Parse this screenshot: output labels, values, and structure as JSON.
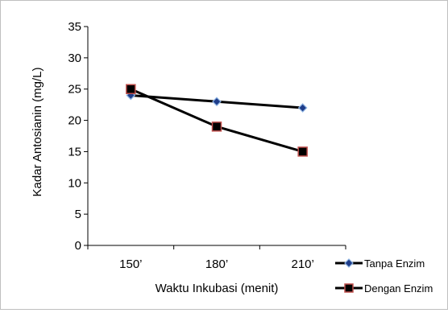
{
  "chart_data": {
    "type": "line",
    "categories": [
      "150’",
      "180’",
      "210’"
    ],
    "xlabel": "Waktu Inkubasi (menit)",
    "ylabel": "Kadar Antosianin (mg/L)",
    "ylim": [
      0,
      35
    ],
    "yticks": [
      0,
      5,
      10,
      15,
      20,
      25,
      30,
      35
    ],
    "grid": false,
    "legend_position": "bottom-right",
    "series": [
      {
        "name": "Tanpa Enzim",
        "values": [
          24,
          23,
          22
        ],
        "marker": "diamond",
        "line_color": "#000000",
        "marker_fill": "#1f3d8a",
        "marker_edge": "#8db3e2"
      },
      {
        "name": "Dengan Enzim",
        "values": [
          25,
          19,
          15
        ],
        "marker": "square",
        "line_color": "#000000",
        "marker_fill": "#000000",
        "marker_edge": "#c0504d"
      }
    ]
  }
}
